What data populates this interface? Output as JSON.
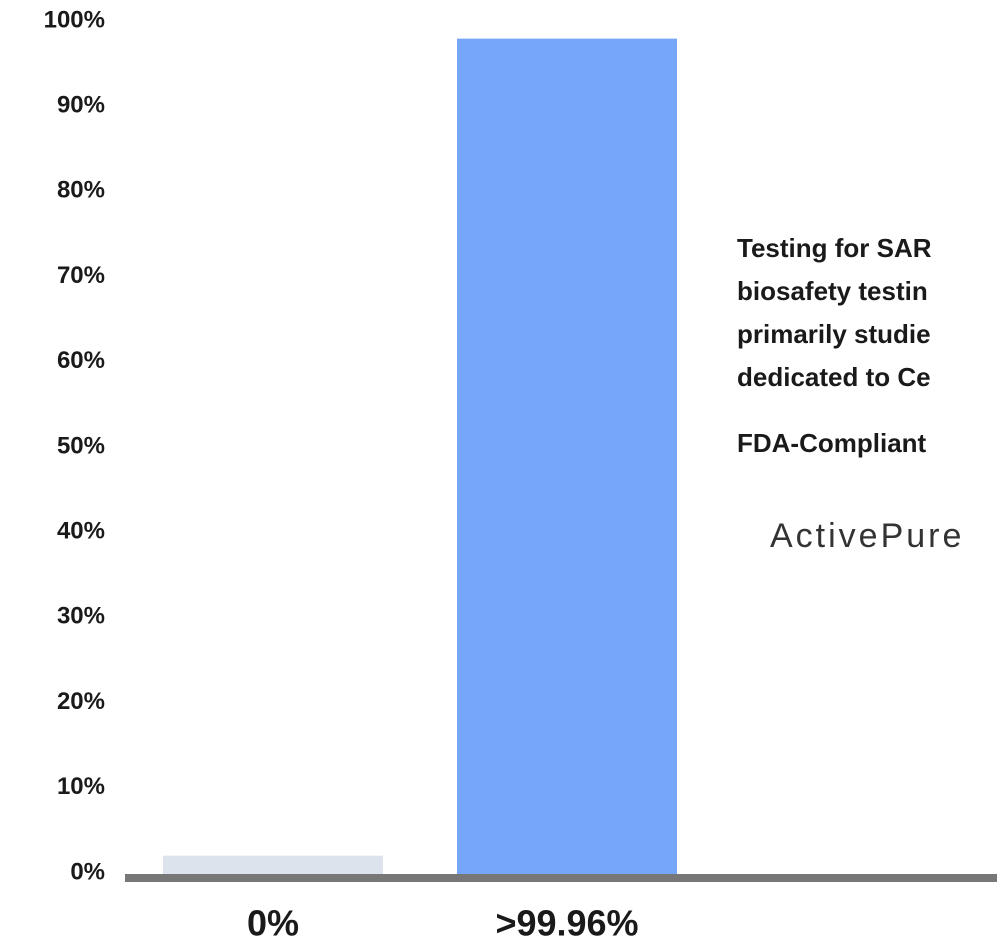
{
  "chart_data": {
    "type": "bar",
    "categories": [
      "0%",
      ">99.96%"
    ],
    "values": [
      2.5,
      98.4
    ],
    "colors": [
      "#dde3ec",
      "#75a6f7"
    ],
    "ylim": [
      0,
      100
    ],
    "yticks": [
      {
        "value": 0,
        "label": "0%"
      },
      {
        "value": 10,
        "label": "10%"
      },
      {
        "value": 20,
        "label": "20%"
      },
      {
        "value": 30,
        "label": "30%"
      },
      {
        "value": 40,
        "label": "40%"
      },
      {
        "value": 50,
        "label": "50%"
      },
      {
        "value": 60,
        "label": "60%"
      },
      {
        "value": 70,
        "label": "70%"
      },
      {
        "value": 80,
        "label": "80%"
      },
      {
        "value": 90,
        "label": "90%"
      },
      {
        "value": 100,
        "label": "100%"
      }
    ],
    "annotations": [
      "Testing for SAR",
      "biosafety testin",
      "primarily studie",
      "dedicated to Ce",
      "FDA-Compliant",
      "ActivePure"
    ]
  }
}
